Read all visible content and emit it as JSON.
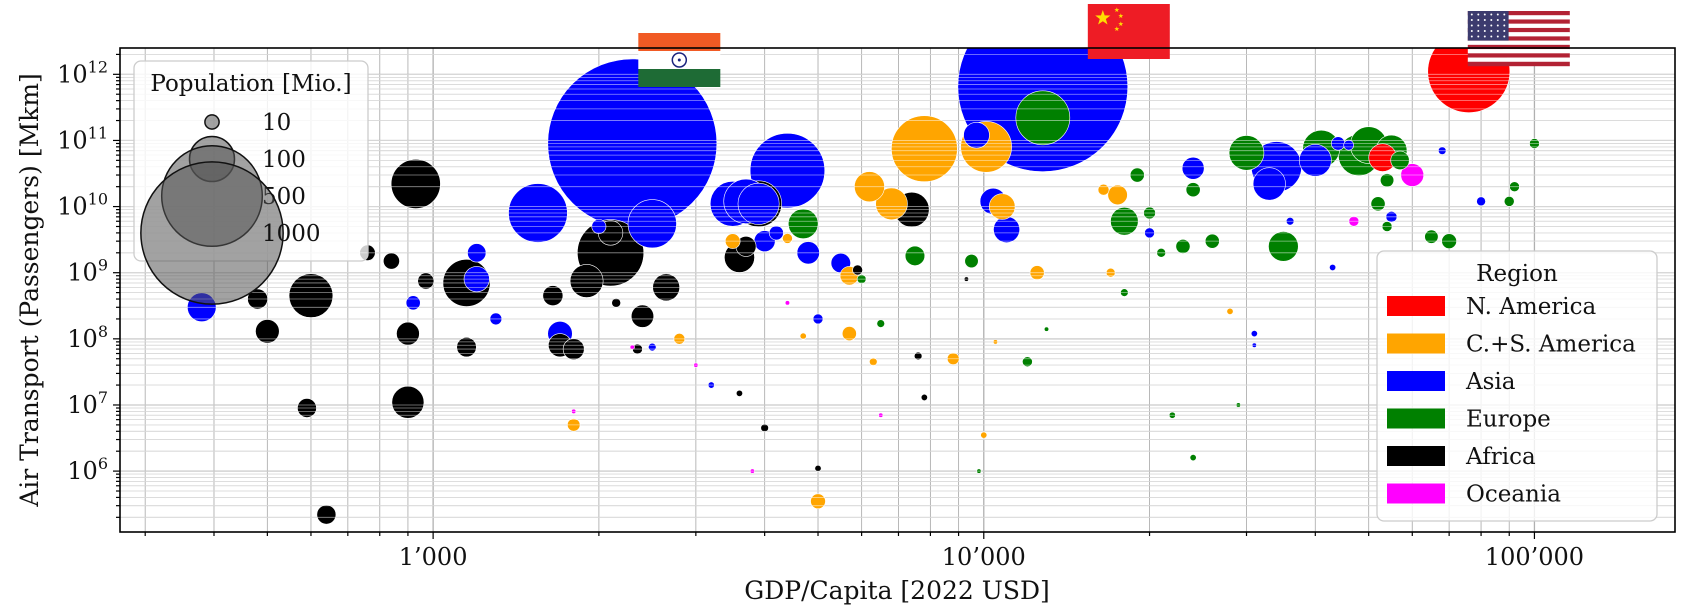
{
  "chart_data": {
    "type": "scatter",
    "title": "",
    "xlabel": "GDP/Capita [2022 USD]",
    "ylabel": "Air Transport (Passengers) [Mkm]",
    "xscale": "log",
    "yscale": "log",
    "xlim": [
      270,
      180000
    ],
    "ylim": [
      120000,
      2500000000000.0
    ],
    "grid": true,
    "x_ticks": [
      {
        "value": 1000,
        "label": "1’000"
      },
      {
        "value": 10000,
        "label": "10’000"
      },
      {
        "value": 100000,
        "label": "100’000"
      }
    ],
    "y_ticks": [
      {
        "value": 1000000.0,
        "base": "10",
        "exp": "6"
      },
      {
        "value": 10000000.0,
        "base": "10",
        "exp": "7"
      },
      {
        "value": 100000000.0,
        "base": "10",
        "exp": "8"
      },
      {
        "value": 1000000000.0,
        "base": "10",
        "exp": "9"
      },
      {
        "value": 10000000000.0,
        "base": "10",
        "exp": "10"
      },
      {
        "value": 100000000000.0,
        "base": "10",
        "exp": "11"
      },
      {
        "value": 1000000000000.0,
        "base": "10",
        "exp": "12"
      }
    ],
    "size_legend": {
      "title": "Population [Mio.]",
      "placement": "top-left",
      "entries": [
        {
          "label": "10",
          "value": 10
        },
        {
          "label": "100",
          "value": 100
        },
        {
          "label": "500",
          "value": 500
        },
        {
          "label": "1000",
          "value": 1000
        }
      ]
    },
    "region_legend": {
      "title": "Region",
      "placement": "lower-right",
      "entries": [
        {
          "name": "N. America",
          "color": "#ff0000"
        },
        {
          "name": "C.+S. America",
          "color": "#ffa500"
        },
        {
          "name": "Asia",
          "color": "#0000ff"
        },
        {
          "name": "Europe",
          "color": "#008000"
        },
        {
          "name": "Africa",
          "color": "#000000"
        },
        {
          "name": "Oceania",
          "color": "#ff00ff"
        }
      ]
    },
    "flags": [
      {
        "country": "India",
        "x": 2300,
        "y": 90000000000.0
      },
      {
        "country": "China",
        "x": 12800,
        "y": 650000000000.0
      },
      {
        "country": "United States",
        "x": 76000,
        "y": 1100000000000.0
      }
    ],
    "series": [
      {
        "name": "N. America",
        "color": "#ff0000",
        "points": [
          [
            76000,
            1100000000000.0,
            333
          ],
          [
            53000,
            55000000000.0,
            38
          ]
        ]
      },
      {
        "name": "C.+S. America",
        "color": "#ffa500",
        "points": [
          [
            7800,
            75000000000.0,
            215
          ],
          [
            10100,
            80000000000.0,
            128
          ],
          [
            6200,
            20000000000.0,
            45
          ],
          [
            6800,
            11000000000.0,
            50
          ],
          [
            10800,
            10000000000.0,
            33
          ],
          [
            17500,
            15000000000.0,
            19
          ],
          [
            16500,
            18000000000.0,
            6
          ],
          [
            3500,
            3000000000.0,
            11
          ],
          [
            4400,
            3300000000.0,
            5
          ],
          [
            5700,
            900000000.0,
            17
          ],
          [
            12500,
            1000000000.0,
            10
          ],
          [
            17000,
            1000000000.0,
            4
          ],
          [
            2800,
            100000000.0,
            6
          ],
          [
            5700,
            120000000.0,
            10
          ],
          [
            8800,
            50000000.0,
            7
          ],
          [
            6300,
            45000000.0,
            3
          ],
          [
            1800,
            5000000.0,
            8
          ],
          [
            5000,
            350000.0,
            11
          ],
          [
            10000,
            3500000.0,
            2
          ],
          [
            28000,
            260000000.0,
            2
          ],
          [
            4700,
            110000000.0,
            2
          ],
          [
            10500,
            90000000.0,
            1
          ]
        ]
      },
      {
        "name": "Asia",
        "color": "#0000ff",
        "points": [
          [
            2300,
            90000000000.0,
            1412
          ],
          [
            12800,
            650000000000.0,
            1426
          ],
          [
            4400,
            35000000000.0,
            275
          ],
          [
            1550,
            8000000000.0,
            171
          ],
          [
            2500,
            5500000000.0,
            116
          ],
          [
            3500,
            11000000000.0,
            100
          ],
          [
            3700,
            12000000000.0,
            98
          ],
          [
            3900,
            11000000000.0,
            84
          ],
          [
            9700,
            120000000000.0,
            33
          ],
          [
            10400,
            12000000000.0,
            34
          ],
          [
            11000,
            4500000000.0,
            34
          ],
          [
            34000,
            40000000000.0,
            125
          ],
          [
            33000,
            22000000000.0,
            52
          ],
          [
            40000,
            50000000000.0,
            51
          ],
          [
            44000,
            90000000000.0,
            9
          ],
          [
            24000,
            38000000000.0,
            24
          ],
          [
            20000,
            4000000000.0,
            5
          ],
          [
            36000,
            6000000000.0,
            3
          ],
          [
            46000,
            85000000000.0,
            5
          ],
          [
            1200,
            800000000.0,
            32
          ],
          [
            380,
            300000000.0,
            41
          ],
          [
            4000,
            3000000000.0,
            22
          ],
          [
            4800,
            2000000000.0,
            25
          ],
          [
            1200,
            2000000000.0,
            17
          ],
          [
            1700,
            120000000.0,
            30
          ],
          [
            4200,
            4000000000.0,
            10
          ],
          [
            920,
            350000000.0,
            10
          ],
          [
            1300,
            200000000.0,
            7
          ],
          [
            3200,
            20000000.0,
            2
          ],
          [
            2500,
            75000000.0,
            3
          ],
          [
            31000,
            120000000.0,
            2
          ],
          [
            31000,
            80000000.0,
            1
          ],
          [
            43000,
            1200000000.0,
            2
          ],
          [
            80000,
            12000000000.0,
            4
          ],
          [
            68000,
            70000000000.0,
            3
          ],
          [
            55000,
            7000000000.0,
            6
          ],
          [
            5000,
            200000000.0,
            5
          ],
          [
            5500,
            1400000000.0,
            19
          ],
          [
            2000,
            5000000000.0,
            10
          ]
        ]
      },
      {
        "name": "Europe",
        "color": "#008000",
        "points": [
          [
            12800,
            220000000000.0,
            144
          ],
          [
            48000,
            60000000000.0,
            84
          ],
          [
            41000,
            75000000000.0,
            68
          ],
          [
            50000,
            85000000000.0,
            67
          ],
          [
            55000,
            70000000000.0,
            48
          ],
          [
            30000,
            65000000000.0,
            60
          ],
          [
            18000,
            6000000000.0,
            38
          ],
          [
            35000,
            2500000000.0,
            44
          ],
          [
            57000,
            50000000000.0,
            17
          ],
          [
            52000,
            11000000000.0,
            10
          ],
          [
            54000,
            25000000000.0,
            9
          ],
          [
            92000,
            20000000000.0,
            5
          ],
          [
            70000,
            3000000000.0,
            11
          ],
          [
            65000,
            3500000000.0,
            9
          ],
          [
            24000,
            18000000000.0,
            10
          ],
          [
            23000,
            2500000000.0,
            10
          ],
          [
            19000,
            30000000000.0,
            10
          ],
          [
            20000,
            8000000000.0,
            7
          ],
          [
            4700,
            5500000000.0,
            44
          ],
          [
            7500,
            1800000000.0,
            19
          ],
          [
            9500,
            1500000000.0,
            9
          ],
          [
            6000,
            800000000.0,
            4
          ],
          [
            26000,
            3000000000.0,
            10
          ],
          [
            90000,
            12000000000.0,
            5
          ],
          [
            100000,
            90000000000.0,
            5
          ],
          [
            21000,
            2000000000.0,
            4
          ],
          [
            18000,
            500000000.0,
            3
          ],
          [
            6500,
            170000000.0,
            3
          ],
          [
            12000,
            45000000.0,
            5
          ],
          [
            22000,
            7000000.0,
            2
          ],
          [
            29000,
            10000000.0,
            1
          ],
          [
            24000,
            1600000.0,
            2
          ],
          [
            9800,
            1000000.0,
            1
          ],
          [
            13000,
            140000000.0,
            1
          ],
          [
            54000,
            5000000000.0,
            5
          ]
        ]
      },
      {
        "name": "Africa",
        "color": "#000000",
        "points": [
          [
            2100,
            2000000000.0,
            218
          ],
          [
            3900,
            11000000000.0,
            105
          ],
          [
            7400,
            9000000000.0,
            60
          ],
          [
            930,
            22000000000.0,
            120
          ],
          [
            1150,
            700000000.0,
            110
          ],
          [
            600,
            450000000.0,
            95
          ],
          [
            1900,
            750000000.0,
            54
          ],
          [
            2400,
            220000000.0,
            25
          ],
          [
            3600,
            1700000000.0,
            45
          ],
          [
            2100,
            4000000000.0,
            30
          ],
          [
            500,
            130000000.0,
            28
          ],
          [
            900,
            120000000.0,
            26
          ],
          [
            900,
            11000000.0,
            51
          ],
          [
            590,
            9000000.0,
            18
          ],
          [
            640,
            220000.0,
            18
          ],
          [
            760,
            2000000000.0,
            12
          ],
          [
            480,
            400000000.0,
            20
          ],
          [
            840,
            1500000000.0,
            13
          ],
          [
            1650,
            450000000.0,
            20
          ],
          [
            1700,
            80000000.0,
            27
          ],
          [
            1800,
            70000000.0,
            22
          ],
          [
            1150,
            75000000.0,
            19
          ],
          [
            2650,
            600000000.0,
            36
          ],
          [
            970,
            750000000.0,
            13
          ],
          [
            3700,
            2500000000.0,
            20
          ],
          [
            5900,
            1100000000.0,
            5
          ],
          [
            7600,
            55000000.0,
            3
          ],
          [
            4000,
            4500000.0,
            3
          ],
          [
            5000,
            1100000.0,
            2
          ],
          [
            2150,
            350000000.0,
            4
          ],
          [
            2350,
            70000000.0,
            5
          ],
          [
            3600,
            15000000.0,
            2
          ],
          [
            9300,
            800000000.0,
            1
          ],
          [
            7800,
            13000000.0,
            2
          ]
        ]
      },
      {
        "name": "Oceania",
        "color": "#ff00ff",
        "points": [
          [
            60000,
            30000000000.0,
            26
          ],
          [
            47000,
            6000000000.0,
            5
          ],
          [
            3000,
            40000000.0,
            1
          ],
          [
            1800,
            8000000.0,
            1
          ],
          [
            3800,
            1000000.0,
            1
          ],
          [
            6500,
            7000000.0,
            1
          ],
          [
            2300,
            75000000.0,
            1
          ],
          [
            4400,
            350000000.0,
            1
          ]
        ]
      }
    ]
  }
}
